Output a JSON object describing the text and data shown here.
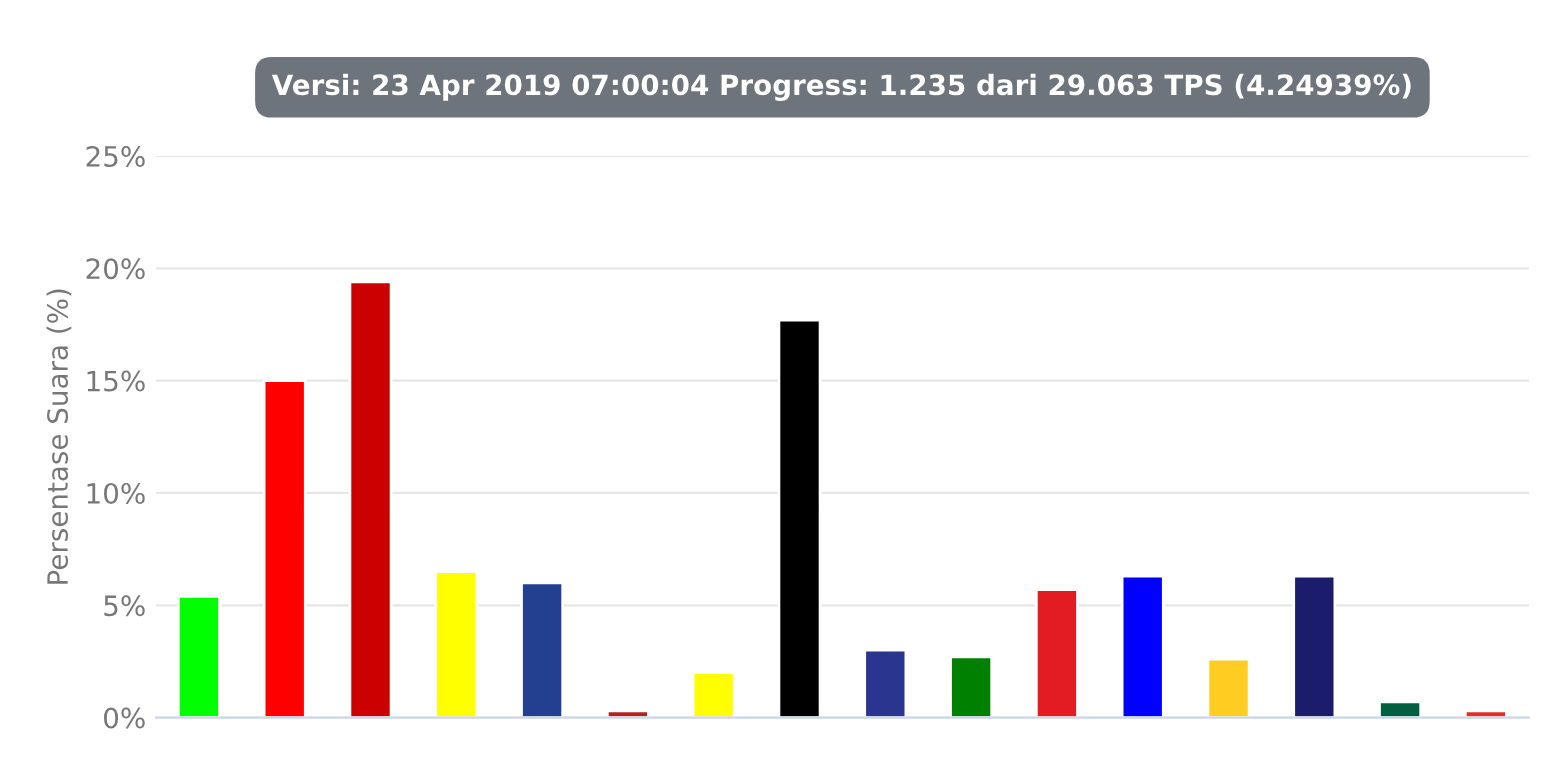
{
  "chart_data": {
    "type": "bar",
    "title": "Versi: 23 Apr 2019 07:00:04 Progress: 1.235 dari 29.063 TPS (4.24939%)",
    "ylabel": "Persentase Suara (%)",
    "categories": [
      null,
      null,
      null,
      null,
      null,
      null,
      null,
      null,
      null,
      null,
      null,
      null,
      null,
      null,
      null,
      null
    ],
    "values": [
      5.4,
      15.0,
      19.4,
      6.5,
      6.0,
      0.3,
      2.0,
      17.7,
      3.0,
      2.7,
      5.7,
      6.3,
      2.6,
      6.3,
      0.7,
      0.3
    ],
    "colors": [
      "#00ff00",
      "#ff0000",
      "#cc0000",
      "#ffff00",
      "#233f8f",
      "#b22222",
      "#ffff00",
      "#000000",
      "#2a3590",
      "#008000",
      "#e31b23",
      "#0000ff",
      "#ffcc22",
      "#1c1c6c",
      "#006040",
      "#e03020"
    ],
    "ylim": [
      0,
      25
    ],
    "yticks": [
      {
        "value": 0,
        "label": "0%"
      },
      {
        "value": 5,
        "label": "5%"
      },
      {
        "value": 10,
        "label": "10%"
      },
      {
        "value": 15,
        "label": "15%"
      },
      {
        "value": 20,
        "label": "20%"
      },
      {
        "value": 25,
        "label": "25%"
      }
    ],
    "grid": "y"
  }
}
